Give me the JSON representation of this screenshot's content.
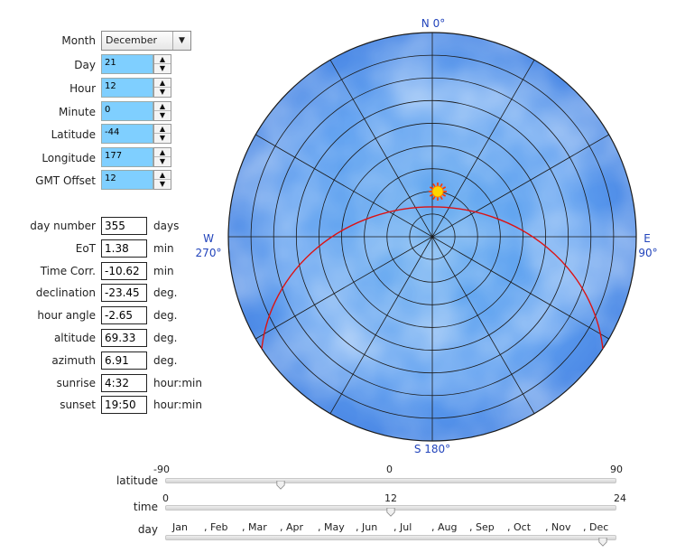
{
  "inputs": {
    "month": {
      "label": "Month",
      "value": "December"
    },
    "day": {
      "label": "Day",
      "value": "21"
    },
    "hour": {
      "label": "Hour",
      "value": "12"
    },
    "minute": {
      "label": "Minute",
      "value": "0"
    },
    "latitude": {
      "label": "Latitude",
      "value": "-44"
    },
    "longitude": {
      "label": "Longitude",
      "value": "177"
    },
    "gmt": {
      "label": "GMT Offset",
      "value": "12"
    }
  },
  "outputs": {
    "day_number": {
      "label": "day number",
      "value": "355",
      "unit": "days"
    },
    "eot": {
      "label": "EoT",
      "value": "1.38",
      "unit": "min"
    },
    "time_corr": {
      "label": "Time Corr.",
      "value": "-10.62",
      "unit": "min"
    },
    "declination": {
      "label": "declination",
      "value": "-23.45",
      "unit": "deg."
    },
    "hour_angle": {
      "label": "hour angle",
      "value": "-2.65",
      "unit": "deg."
    },
    "altitude": {
      "label": "altitude",
      "value": "69.33",
      "unit": "deg."
    },
    "azimuth": {
      "label": "azimuth",
      "value": "6.91",
      "unit": "deg."
    },
    "sunrise": {
      "label": "sunrise",
      "value": "4:32",
      "unit": "hour:min"
    },
    "sunset": {
      "label": "sunset",
      "value": "19:50",
      "unit": "hour:min"
    }
  },
  "compass": {
    "north": "N 0°",
    "east_letter": "E",
    "east_deg": "90°",
    "south": "S 180°",
    "west_letter": "W",
    "west_deg": "270°"
  },
  "sliders": {
    "latitude": {
      "label": "latitude",
      "min": "-90",
      "mid": "0",
      "max": "90",
      "value": -44
    },
    "time": {
      "label": "time",
      "min": "0",
      "mid": "12",
      "max": "24",
      "value": 12
    },
    "day": {
      "label": "day",
      "months": [
        "Jan",
        "Feb",
        "Mar",
        "Apr",
        "May",
        "Jun",
        "Jul",
        "Aug",
        "Sep",
        "Oct",
        "Nov",
        "Dec"
      ],
      "value_fraction": 0.97
    }
  },
  "colors": {
    "input_bg": "#7fcfff",
    "sky_blue": "#5aa0ea",
    "sun_path": "#dd1111",
    "compass_text": "#2244bb"
  }
}
